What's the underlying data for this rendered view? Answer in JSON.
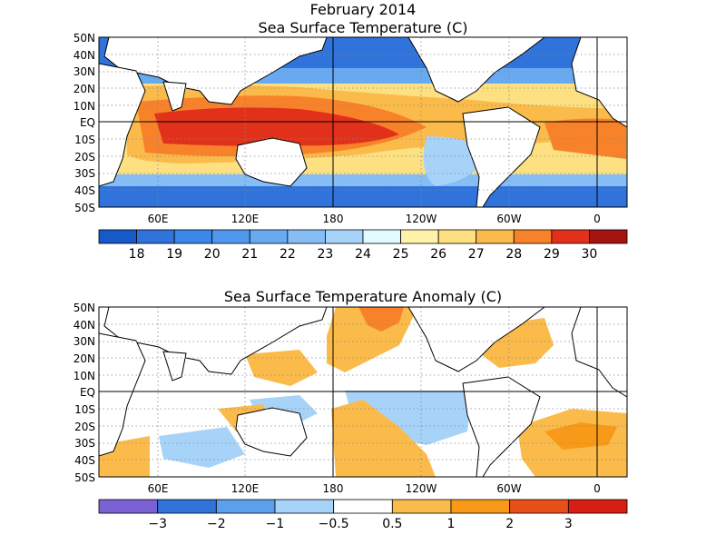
{
  "title_line1": "February 2014",
  "top_map": {
    "title": "Sea Surface Temperature (C)",
    "lat_labels": [
      "50N",
      "40N",
      "30N",
      "20N",
      "10N",
      "EQ",
      "10S",
      "20S",
      "30S",
      "40S",
      "50S"
    ],
    "lon_labels": [
      "60E",
      "120E",
      "180",
      "120W",
      "60W",
      "0"
    ],
    "colorbar": {
      "tick_labels": [
        "18",
        "19",
        "20",
        "21",
        "22",
        "23",
        "24",
        "25",
        "26",
        "27",
        "28",
        "29",
        "30"
      ],
      "colors": [
        "#1659c8",
        "#2f73db",
        "#3c87ea",
        "#4f98ee",
        "#68aaf1",
        "#86bdf5",
        "#a8d3f9",
        "#e1faff",
        "#fff2a8",
        "#fde081",
        "#fbbb4a",
        "#f8822a",
        "#e2311a",
        "#a41510"
      ]
    }
  },
  "bottom_map": {
    "title": "Sea Surface Temperature Anomaly (C)",
    "lat_labels": [
      "50N",
      "40N",
      "30N",
      "20N",
      "10N",
      "EQ",
      "10S",
      "20S",
      "30S",
      "40S",
      "50S"
    ],
    "lon_labels": [
      "60E",
      "120E",
      "180",
      "120W",
      "60W",
      "0"
    ],
    "colorbar": {
      "tick_labels": [
        "−3",
        "−2",
        "−1",
        "−0.5",
        "0.5",
        "1",
        "2",
        "3"
      ],
      "colors": [
        "#7b62d4",
        "#2f73db",
        "#5aa0ec",
        "#a8d3f9",
        "#ffffff",
        "#fbbb4a",
        "#f89a17",
        "#e8501a",
        "#d81d12"
      ]
    }
  }
}
